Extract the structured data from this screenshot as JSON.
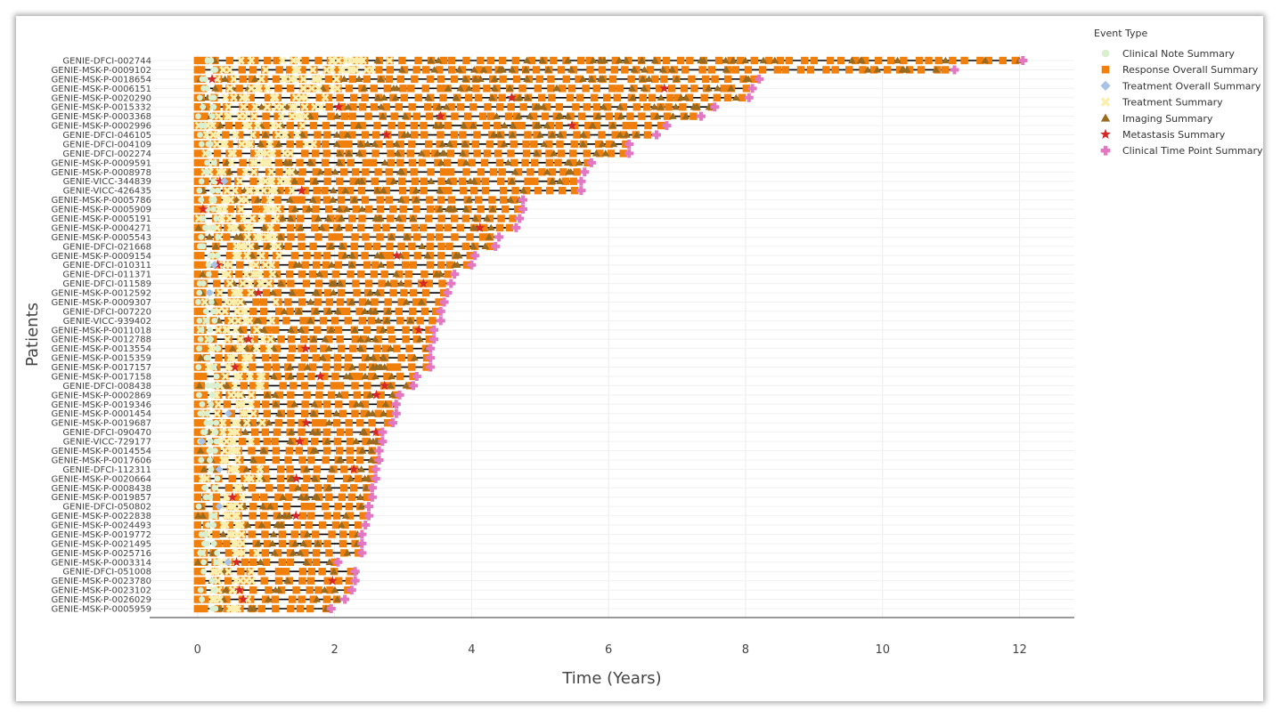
{
  "chart_data": {
    "type": "scatter",
    "title": "",
    "xlabel": "Time (Years)",
    "ylabel": "Patients",
    "xlim": [
      -0.7,
      12.8
    ],
    "x_ticks": [
      0,
      2,
      4,
      6,
      8,
      10,
      12
    ],
    "grid": true,
    "legend_position": "right",
    "legend": {
      "title": "Event Type",
      "entries": [
        {
          "name": "Clinical Note Summary",
          "color": "#d9efcf",
          "marker": "circle"
        },
        {
          "name": "Response Overall Summary",
          "color": "#f07f0c",
          "marker": "square"
        },
        {
          "name": "Treatment Overall Summary",
          "color": "#a9c2e6",
          "marker": "diamond"
        },
        {
          "name": "Treatment Summary",
          "color": "#fbefb0",
          "marker": "x"
        },
        {
          "name": "Imaging Summary",
          "color": "#9a6a1e",
          "marker": "triangle"
        },
        {
          "name": "Metastasis Summary",
          "color": "#d62728",
          "marker": "star"
        },
        {
          "name": "Clinical Time Point Summary",
          "color": "#e377c2",
          "marker": "cross"
        }
      ]
    },
    "patients": [
      {
        "id": "GENIE-DFCI-002744",
        "end": 12.05
      },
      {
        "id": "GENIE-MSK-P-0009102",
        "end": 11.05
      },
      {
        "id": "GENIE-MSK-P-0018654",
        "end": 8.2
      },
      {
        "id": "GENIE-MSK-P-0006151",
        "end": 8.1
      },
      {
        "id": "GENIE-MSK-P-0020290",
        "end": 8.05
      },
      {
        "id": "GENIE-MSK-P-0015332",
        "end": 7.55
      },
      {
        "id": "GENIE-MSK-P-0003368",
        "end": 7.35
      },
      {
        "id": "GENIE-MSK-P-0002996",
        "end": 6.85
      },
      {
        "id": "GENIE-DFCI-046105",
        "end": 6.7
      },
      {
        "id": "GENIE-DFCI-004109",
        "end": 6.3
      },
      {
        "id": "GENIE-DFCI-002274",
        "end": 6.3
      },
      {
        "id": "GENIE-MSK-P-0009591",
        "end": 5.75
      },
      {
        "id": "GENIE-MSK-P-0008978",
        "end": 5.65
      },
      {
        "id": "GENIE-VICC-344839",
        "end": 5.6
      },
      {
        "id": "GENIE-VICC-426435",
        "end": 5.6
      },
      {
        "id": "GENIE-MSK-P-0005786",
        "end": 4.75
      },
      {
        "id": "GENIE-MSK-P-0005909",
        "end": 4.75
      },
      {
        "id": "GENIE-MSK-P-0005191",
        "end": 4.7
      },
      {
        "id": "GENIE-MSK-P-0004271",
        "end": 4.65
      },
      {
        "id": "GENIE-MSK-P-0005543",
        "end": 4.4
      },
      {
        "id": "GENIE-DFCI-021668",
        "end": 4.35
      },
      {
        "id": "GENIE-MSK-P-0009154",
        "end": 4.05
      },
      {
        "id": "GENIE-DFCI-010311",
        "end": 4.0
      },
      {
        "id": "GENIE-DFCI-011371",
        "end": 3.75
      },
      {
        "id": "GENIE-DFCI-011589",
        "end": 3.7
      },
      {
        "id": "GENIE-MSK-P-0012592",
        "end": 3.65
      },
      {
        "id": "GENIE-MSK-P-0009307",
        "end": 3.6
      },
      {
        "id": "GENIE-DFCI-007220",
        "end": 3.55
      },
      {
        "id": "GENIE-VICC-939402",
        "end": 3.55
      },
      {
        "id": "GENIE-MSK-P-0011018",
        "end": 3.45
      },
      {
        "id": "GENIE-MSK-P-0012788",
        "end": 3.45
      },
      {
        "id": "GENIE-MSK-P-0013554",
        "end": 3.4
      },
      {
        "id": "GENIE-MSK-P-0015359",
        "end": 3.4
      },
      {
        "id": "GENIE-MSK-P-0017157",
        "end": 3.4
      },
      {
        "id": "GENIE-MSK-P-0017158",
        "end": 3.2
      },
      {
        "id": "GENIE-DFCI-008438",
        "end": 3.15
      },
      {
        "id": "GENIE-MSK-P-0002869",
        "end": 2.95
      },
      {
        "id": "GENIE-MSK-P-0019346",
        "end": 2.9
      },
      {
        "id": "GENIE-MSK-P-0001454",
        "end": 2.9
      },
      {
        "id": "GENIE-MSK-P-0019687",
        "end": 2.85
      },
      {
        "id": "GENIE-DFCI-090470",
        "end": 2.7
      },
      {
        "id": "GENIE-VICC-729177",
        "end": 2.7
      },
      {
        "id": "GENIE-MSK-P-0014554",
        "end": 2.65
      },
      {
        "id": "GENIE-MSK-P-0017606",
        "end": 2.65
      },
      {
        "id": "GENIE-DFCI-112311",
        "end": 2.6
      },
      {
        "id": "GENIE-MSK-P-0020664",
        "end": 2.6
      },
      {
        "id": "GENIE-MSK-P-0008438",
        "end": 2.55
      },
      {
        "id": "GENIE-MSK-P-0019857",
        "end": 2.55
      },
      {
        "id": "GENIE-DFCI-050802",
        "end": 2.5
      },
      {
        "id": "GENIE-MSK-P-0022838",
        "end": 2.5
      },
      {
        "id": "GENIE-MSK-P-0024493",
        "end": 2.45
      },
      {
        "id": "GENIE-MSK-P-0019772",
        "end": 2.4
      },
      {
        "id": "GENIE-MSK-P-0021495",
        "end": 2.4
      },
      {
        "id": "GENIE-MSK-P-0025716",
        "end": 2.4
      },
      {
        "id": "GENIE-MSK-P-0003314",
        "end": 2.05
      },
      {
        "id": "GENIE-DFCI-051008",
        "end": 2.3
      },
      {
        "id": "GENIE-MSK-P-0023780",
        "end": 2.3
      },
      {
        "id": "GENIE-MSK-P-0023102",
        "end": 2.25
      },
      {
        "id": "GENIE-MSK-P-0026029",
        "end": 2.15
      },
      {
        "id": "GENIE-MSK-P-0005959",
        "end": 1.95
      }
    ]
  }
}
